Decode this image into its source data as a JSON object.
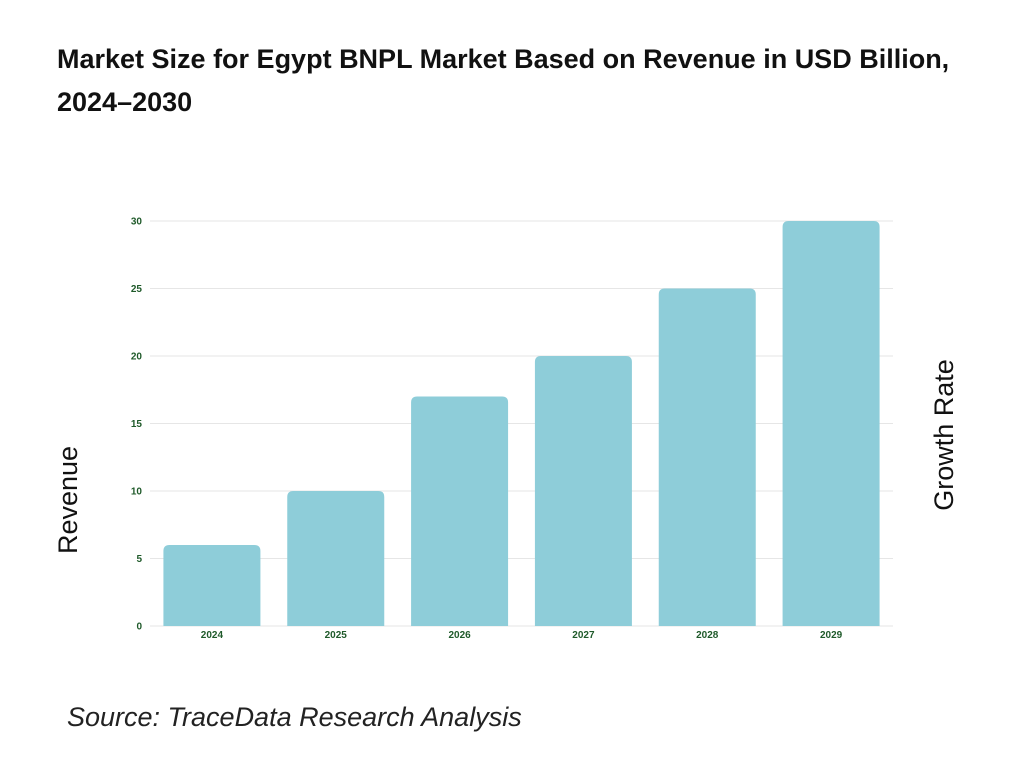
{
  "title": "Market Size for Egypt BNPL Market Based on Revenue in USD Billion, 2024–2030",
  "source": "Source: TraceData Research Analysis",
  "chart_data": {
    "type": "bar",
    "categories": [
      "2024",
      "2025",
      "2026",
      "2027",
      "2028",
      "2029"
    ],
    "values": [
      6,
      10,
      17,
      20,
      25,
      30
    ],
    "ylabel": "Revenue",
    "y2label": "Growth Rate",
    "ylim": [
      0,
      30
    ],
    "yticks": [
      0,
      5,
      10,
      15,
      20,
      25,
      30
    ],
    "grid": true,
    "bar_color": "#8ecdd9",
    "tick_color": "#1f5a2a",
    "grid_color": "#e6e6e6"
  }
}
